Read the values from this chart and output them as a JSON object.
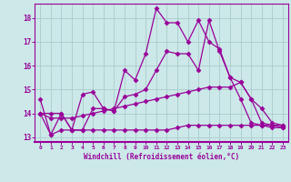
{
  "xlabel": "Windchill (Refroidissement éolien,°C)",
  "background_color": "#cce8e8",
  "grid_color": "#aacccc",
  "line_color": "#990099",
  "xlim": [
    -0.5,
    23.5
  ],
  "ylim": [
    12.8,
    18.6
  ],
  "yticks": [
    13,
    14,
    15,
    16,
    17,
    18
  ],
  "xticks": [
    0,
    1,
    2,
    3,
    4,
    5,
    6,
    7,
    8,
    9,
    10,
    11,
    12,
    13,
    14,
    15,
    16,
    17,
    18,
    19,
    20,
    21,
    22,
    23
  ],
  "series": [
    {
      "x": [
        0,
        1,
        2,
        3,
        4,
        5,
        6,
        7,
        8,
        9,
        10,
        11,
        12,
        13,
        14,
        15,
        16,
        17,
        18,
        19,
        20,
        21,
        22,
        23
      ],
      "y": [
        14.6,
        13.1,
        14.0,
        13.3,
        14.8,
        14.9,
        14.2,
        14.1,
        15.8,
        15.4,
        16.5,
        18.4,
        17.8,
        17.8,
        17.0,
        17.9,
        17.0,
        16.7,
        15.5,
        14.6,
        13.6,
        13.5,
        13.4,
        13.4
      ]
    },
    {
      "x": [
        0,
        1,
        2,
        3,
        4,
        5,
        6,
        7,
        8,
        9,
        10,
        11,
        12,
        13,
        14,
        15,
        16,
        17,
        18,
        19,
        20,
        21,
        22,
        23
      ],
      "y": [
        14.0,
        14.0,
        14.0,
        13.3,
        13.3,
        14.2,
        14.2,
        14.1,
        14.7,
        14.8,
        15.0,
        15.8,
        16.6,
        16.5,
        16.5,
        15.8,
        17.9,
        16.6,
        15.5,
        15.3,
        14.6,
        13.6,
        13.5,
        13.4
      ]
    },
    {
      "x": [
        0,
        1,
        2,
        3,
        4,
        5,
        6,
        7,
        8,
        9,
        10,
        11,
        12,
        13,
        14,
        15,
        16,
        17,
        18,
        19,
        20,
        21,
        22,
        23
      ],
      "y": [
        14.0,
        13.1,
        13.3,
        13.3,
        13.3,
        13.3,
        13.3,
        13.3,
        13.3,
        13.3,
        13.3,
        13.3,
        13.3,
        13.4,
        13.5,
        13.5,
        13.5,
        13.5,
        13.5,
        13.5,
        13.5,
        13.5,
        13.5,
        13.5
      ]
    },
    {
      "x": [
        0,
        1,
        2,
        3,
        4,
        5,
        6,
        7,
        8,
        9,
        10,
        11,
        12,
        13,
        14,
        15,
        16,
        17,
        18,
        19,
        20,
        21,
        22,
        23
      ],
      "y": [
        14.0,
        13.8,
        13.8,
        13.8,
        13.9,
        14.0,
        14.1,
        14.2,
        14.3,
        14.4,
        14.5,
        14.6,
        14.7,
        14.8,
        14.9,
        15.0,
        15.1,
        15.1,
        15.1,
        15.3,
        14.6,
        14.2,
        13.6,
        13.5
      ]
    }
  ]
}
